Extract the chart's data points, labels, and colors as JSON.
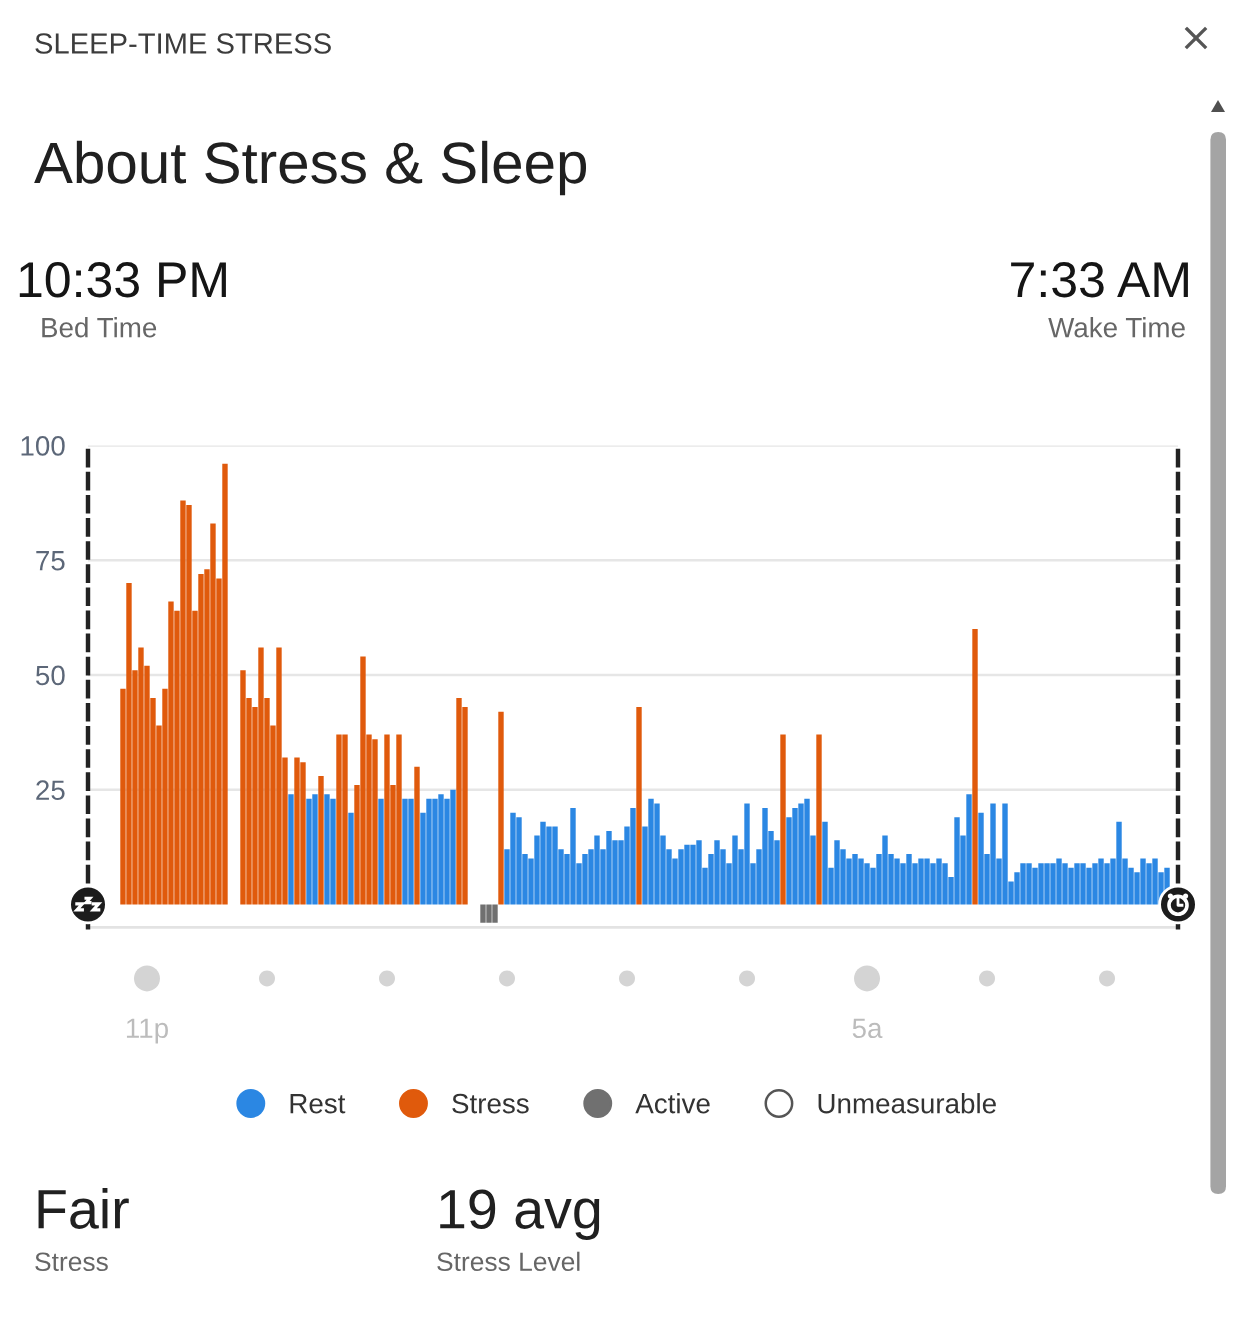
{
  "chart_data": {
    "type": "bar",
    "title": "SLEEP-TIME STRESS",
    "subtitle": "About Stress & Sleep",
    "annotations": [
      "10:33 PM",
      "Bed Time",
      "7:33 AM",
      "Wake Time",
      "Fair",
      "Stress",
      "19 avg",
      "Stress Level"
    ],
    "categories": [
      null,
      null,
      null,
      null,
      "11p",
      null,
      null,
      null,
      null,
      null,
      null,
      null,
      null,
      null,
      null,
      null,
      null,
      null,
      null,
      null,
      null,
      null,
      null,
      null,
      null,
      null,
      null,
      null,
      null,
      null,
      null,
      null,
      null,
      null,
      null,
      null,
      null,
      null,
      null,
      null,
      null,
      null,
      null,
      null,
      null,
      null,
      null,
      null,
      null,
      null,
      null,
      null,
      null,
      null,
      null,
      null,
      null,
      null,
      null,
      null,
      null,
      null,
      null,
      null,
      null,
      null,
      null,
      null,
      null,
      null,
      null,
      null,
      null,
      null,
      null,
      null,
      null,
      null,
      null,
      null,
      null,
      null,
      null,
      null,
      null,
      null,
      null,
      null,
      null,
      null,
      null,
      null,
      null,
      null,
      null,
      null,
      null,
      null,
      null,
      null,
      null,
      null,
      null,
      null,
      null,
      null,
      null,
      null,
      null,
      null,
      null,
      null,
      null,
      null,
      null,
      null,
      null,
      null,
      null,
      null,
      null,
      null,
      null,
      null,
      "5a",
      null,
      null,
      null,
      null,
      null,
      null,
      null,
      null,
      null,
      null,
      null,
      null,
      null,
      null,
      null,
      null,
      null,
      null,
      null,
      null,
      null,
      null,
      null,
      null,
      null,
      null,
      null,
      null,
      null,
      null,
      null,
      null,
      null,
      null,
      null,
      null,
      null,
      null,
      null,
      null,
      null,
      null,
      null,
      null,
      null,
      null,
      null,
      null,
      null,
      null
    ],
    "series": [
      {
        "name": "Rest",
        "color": "#2b87e3",
        "values": [
          null,
          null,
          null,
          null,
          null,
          null,
          null,
          null,
          null,
          null,
          null,
          null,
          null,
          null,
          null,
          null,
          null,
          null,
          null,
          null,
          null,
          null,
          null,
          null,
          null,
          null,
          null,
          null,
          24,
          null,
          null,
          23,
          24,
          null,
          24,
          23,
          null,
          null,
          20,
          null,
          null,
          null,
          null,
          23,
          null,
          null,
          null,
          23,
          23,
          null,
          20,
          23,
          23,
          24,
          23,
          25,
          null,
          null,
          null,
          null,
          null,
          null,
          null,
          null,
          12,
          20,
          19,
          11,
          10,
          15,
          18,
          17,
          17,
          12,
          11,
          21,
          9,
          11,
          12,
          15,
          12,
          16,
          14,
          14,
          17,
          21,
          null,
          17,
          23,
          22,
          15,
          12,
          10,
          12,
          13,
          13,
          14,
          8,
          11,
          14,
          12,
          9,
          15,
          12,
          22,
          9,
          12,
          21,
          16,
          14,
          null,
          19,
          21,
          22,
          23,
          15,
          null,
          18,
          8,
          14,
          12,
          10,
          11,
          10,
          9,
          8,
          11,
          15,
          11,
          10,
          9,
          11,
          9,
          10,
          10,
          9,
          10,
          9,
          6,
          19,
          15,
          24,
          null,
          20,
          11,
          22,
          10,
          22,
          5,
          7,
          9,
          9,
          8,
          9,
          9,
          9,
          10,
          9,
          8,
          9,
          9,
          8,
          9,
          10,
          9,
          10,
          18,
          10,
          8,
          7,
          10,
          9,
          10,
          7,
          8
        ]
      },
      {
        "name": "Stress",
        "color": "#e05a0c",
        "values": [
          47,
          70,
          51,
          56,
          52,
          45,
          39,
          47,
          66,
          64,
          88,
          87,
          64,
          72,
          73,
          83,
          71,
          96,
          null,
          null,
          51,
          45,
          43,
          56,
          45,
          39,
          56,
          32,
          null,
          32,
          31,
          null,
          null,
          28,
          null,
          null,
          37,
          37,
          null,
          26,
          54,
          37,
          36,
          null,
          37,
          26,
          37,
          null,
          null,
          30,
          null,
          null,
          null,
          null,
          null,
          null,
          45,
          43,
          null,
          null,
          null,
          null,
          null,
          42,
          null,
          null,
          null,
          null,
          null,
          null,
          null,
          null,
          null,
          null,
          null,
          null,
          null,
          null,
          null,
          null,
          null,
          null,
          null,
          null,
          null,
          null,
          43,
          null,
          null,
          null,
          null,
          null,
          null,
          null,
          null,
          null,
          null,
          null,
          null,
          null,
          null,
          null,
          null,
          null,
          null,
          null,
          null,
          null,
          null,
          null,
          37,
          null,
          null,
          null,
          null,
          null,
          37,
          null,
          null,
          null,
          null,
          null,
          null,
          null,
          null,
          null,
          null,
          null,
          null,
          null,
          null,
          null,
          null,
          null,
          null,
          null,
          null,
          null,
          null,
          null,
          null,
          null,
          60,
          null,
          null,
          null,
          null,
          null,
          null,
          null,
          null,
          null,
          null,
          null,
          null,
          null,
          null,
          null,
          null,
          null,
          null,
          null,
          null,
          null,
          null,
          null,
          null,
          null,
          null,
          null,
          null,
          null,
          null,
          null,
          null
        ]
      },
      {
        "name": "Active",
        "color": "#707070",
        "values": [
          null,
          null,
          null,
          null,
          null,
          null,
          null,
          null,
          null,
          null,
          null,
          null,
          null,
          null,
          null,
          null,
          null,
          null,
          null,
          null,
          null,
          null,
          null,
          null,
          null,
          null,
          null,
          null,
          null,
          null,
          null,
          null,
          null,
          null,
          null,
          null,
          null,
          null,
          null,
          null,
          null,
          null,
          null,
          null,
          null,
          null,
          null,
          null,
          null,
          null,
          null,
          null,
          null,
          null,
          null,
          null,
          null,
          null,
          null,
          null,
          -4,
          -4,
          -4,
          null,
          null,
          null,
          null,
          null,
          null,
          null,
          null,
          null,
          null,
          null,
          null,
          null,
          null,
          null,
          null,
          null,
          null,
          null,
          null,
          null,
          null,
          null,
          null,
          null,
          null,
          null,
          null,
          null,
          null,
          null,
          null,
          null,
          null,
          null,
          null,
          null,
          null,
          null,
          null,
          null,
          null,
          null,
          null,
          null,
          null,
          null,
          null,
          null,
          null,
          null,
          null,
          null,
          null,
          null,
          null,
          null,
          null,
          null,
          null,
          null,
          null,
          null,
          null,
          null,
          null,
          null,
          null,
          null,
          null,
          null,
          null,
          null,
          null,
          null,
          null,
          null,
          null,
          null,
          null,
          null,
          null,
          null,
          null,
          null,
          null,
          null,
          null,
          null,
          null,
          null,
          null,
          null,
          null,
          null,
          null,
          null,
          null,
          null,
          null,
          null,
          null,
          null,
          null,
          null,
          null,
          null,
          null,
          null,
          null,
          null,
          null
        ]
      },
      {
        "name": "Unmeasurable",
        "color": "#ffffff",
        "values": [
          null,
          null,
          null,
          null,
          null,
          null,
          null,
          null,
          null,
          null,
          null,
          null,
          null,
          null,
          null,
          null,
          null,
          null,
          null,
          null,
          null,
          null,
          null,
          null,
          null,
          null,
          null,
          null,
          null,
          null,
          null,
          null,
          null,
          null,
          null,
          null,
          null,
          null,
          null,
          null,
          null,
          null,
          null,
          null,
          null,
          null,
          null,
          null,
          null,
          null,
          null,
          null,
          null,
          null,
          null,
          null,
          null,
          null,
          null,
          null,
          null,
          null,
          null,
          null,
          null,
          null,
          null,
          null,
          null,
          null,
          null,
          null,
          null,
          null,
          null,
          null,
          null,
          null,
          null,
          null,
          null,
          null,
          null,
          null,
          null,
          null,
          null,
          null,
          null,
          null,
          null,
          null,
          null,
          null,
          null,
          null,
          null,
          null,
          null,
          null,
          null,
          null,
          null,
          null,
          null,
          null,
          null,
          null,
          null,
          null,
          null,
          null,
          null,
          null,
          null,
          null,
          null,
          null,
          null,
          null,
          null,
          null,
          null,
          null,
          null,
          null,
          null,
          null,
          null,
          null,
          null,
          null,
          null,
          null,
          null,
          null,
          null,
          null,
          null,
          null,
          null,
          null,
          null,
          null,
          null,
          null,
          null,
          null,
          null,
          null,
          null,
          null,
          null,
          null,
          null,
          null,
          null,
          null,
          null,
          null,
          null,
          null,
          null,
          null,
          null,
          null,
          null,
          null,
          null,
          null,
          null,
          null,
          null,
          null,
          null
        ]
      }
    ],
    "ylim": [
      -5,
      100
    ],
    "yticks": [
      25,
      50,
      75,
      100
    ],
    "grid": "y",
    "legend": "bottom"
  }
}
